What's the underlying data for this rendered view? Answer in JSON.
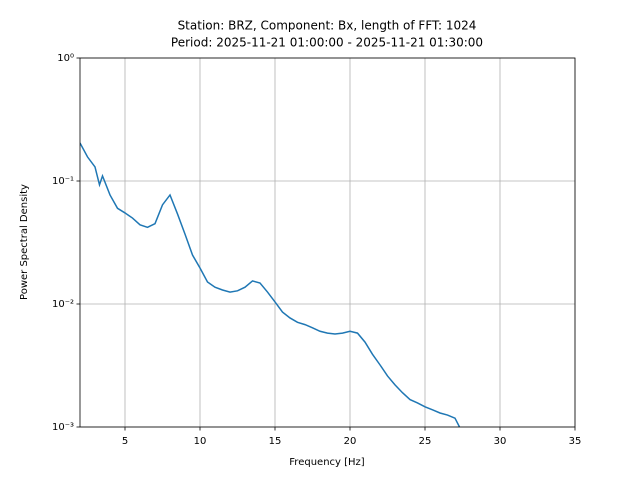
{
  "chart_data": {
    "type": "line",
    "title": [
      "Station: BRZ, Component: Bx, length of FFT: 1024",
      "Period: 2025-11-21 01:00:00 - 2025-11-21 01:30:00"
    ],
    "xlabel": "Frequency [Hz]",
    "ylabel": "Power Spectral Density",
    "x": [
      2,
      2.5,
      3,
      3.3,
      3.5,
      4,
      4.5,
      5,
      5.5,
      6,
      6.5,
      7,
      7.5,
      8,
      8.5,
      9,
      9.5,
      10,
      10.5,
      11,
      11.5,
      12,
      12.5,
      13,
      13.5,
      14,
      14.5,
      15,
      15.5,
      16,
      16.5,
      17,
      17.5,
      18,
      18.5,
      19,
      19.5,
      20,
      20.5,
      21,
      21.5,
      22,
      22.5,
      23,
      23.5,
      24,
      24.5,
      25,
      25.5,
      26,
      26.5,
      27,
      27.3
    ],
    "values": [
      0.204,
      0.157,
      0.13,
      0.093,
      0.11,
      0.077,
      0.06,
      0.055,
      0.05,
      0.044,
      0.042,
      0.045,
      0.064,
      0.077,
      0.054,
      0.037,
      0.025,
      0.0196,
      0.0151,
      0.0137,
      0.013,
      0.0125,
      0.0128,
      0.0137,
      0.0154,
      0.0148,
      0.0125,
      0.0104,
      0.0086,
      0.0077,
      0.0071,
      0.0068,
      0.0064,
      0.006,
      0.0058,
      0.0057,
      0.0058,
      0.006,
      0.0058,
      0.0049,
      0.0039,
      0.0032,
      0.0026,
      0.0022,
      0.0019,
      0.00167,
      0.00157,
      0.00146,
      0.00138,
      0.0013,
      0.00125,
      0.00118,
      0.001
    ],
    "color": "#1f77b4",
    "xlim": [
      2,
      35
    ],
    "xticks": [
      5,
      10,
      15,
      20,
      25,
      30,
      35
    ],
    "ylim": [
      0.001,
      1
    ],
    "log_y": true,
    "yticks": [
      {
        "value": 0.001,
        "label": "10⁻³"
      },
      {
        "value": 0.01,
        "label": "10⁻²"
      },
      {
        "value": 0.1,
        "label": "10⁻¹"
      },
      {
        "value": 1,
        "label": "10⁰"
      }
    ],
    "grid": true
  }
}
